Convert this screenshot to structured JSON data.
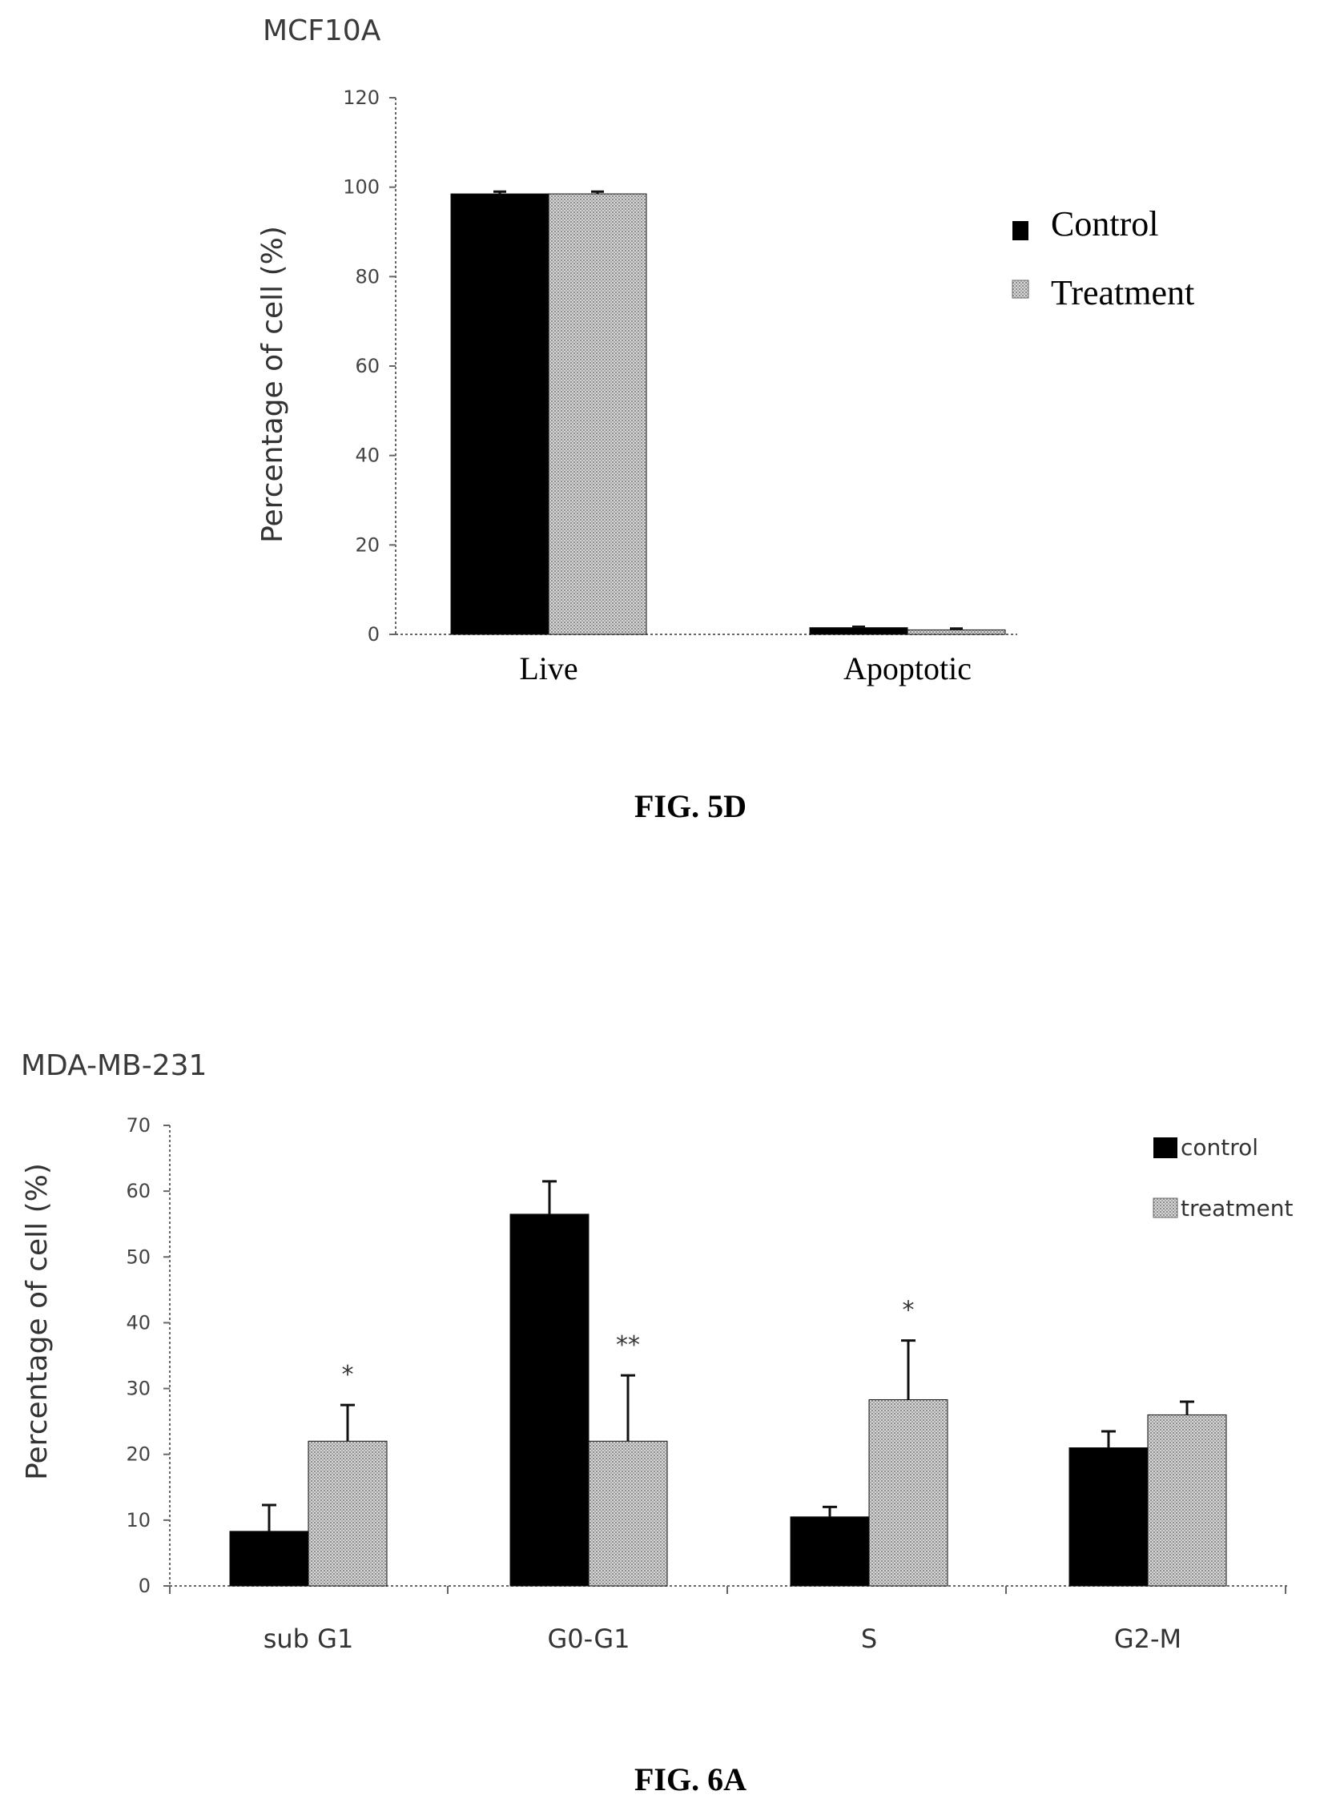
{
  "chart_data": [
    {
      "type": "bar",
      "title": "MCF10A",
      "ylabel": "Percentage of cell (%)",
      "xlabel": "",
      "ylim": [
        0,
        120
      ],
      "yticks": [
        "0",
        "20",
        "40",
        "60",
        "80",
        "100",
        "120"
      ],
      "categories": [
        "Live",
        "Apoptotic"
      ],
      "series": [
        {
          "name": "Control",
          "values": [
            98.5,
            1.5
          ],
          "errors": [
            0.5,
            0.2
          ],
          "color": "#000000",
          "pattern": "solid"
        },
        {
          "name": "Treatment",
          "values": [
            98.5,
            1.0
          ],
          "errors": [
            0.5,
            0.3
          ],
          "color": "#bdbdbd",
          "pattern": "dotted"
        }
      ],
      "legend_position": "right",
      "grid": false,
      "caption": "FIG. 5D"
    },
    {
      "type": "bar",
      "title": "MDA-MB-231",
      "ylabel": "Percentage of cell (%)",
      "xlabel": "",
      "ylim": [
        0,
        70
      ],
      "yticks": [
        "0",
        "10",
        "20",
        "30",
        "40",
        "50",
        "60",
        "70"
      ],
      "categories": [
        "sub G1",
        "G0-G1",
        "S",
        "G2-M"
      ],
      "series": [
        {
          "name": "control",
          "values": [
            8.3,
            56.5,
            10.5,
            21
          ],
          "errors": [
            4,
            5,
            1.5,
            2.5
          ],
          "color": "#000000",
          "pattern": "solid"
        },
        {
          "name": "treatment",
          "values": [
            22,
            22,
            28.3,
            26
          ],
          "errors": [
            5.5,
            10,
            9,
            2
          ],
          "color": "#bdbdbd",
          "pattern": "dotted"
        }
      ],
      "annotations": [
        "*",
        "**",
        "*",
        ""
      ],
      "legend_position": "top-right",
      "grid": false,
      "caption": "FIG. 6A"
    }
  ]
}
